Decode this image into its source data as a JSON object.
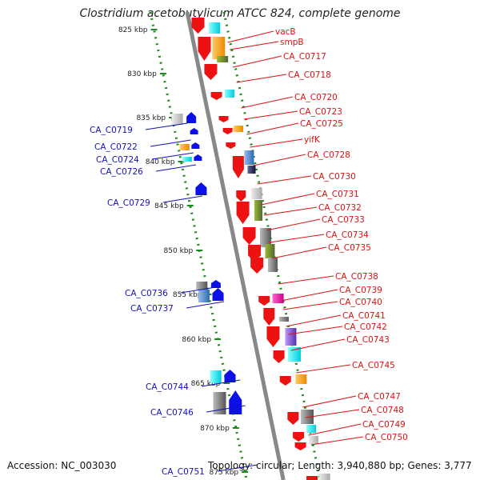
{
  "title": "Clostridium acetobutylicum ATCC 824, complete genome",
  "footer": {
    "accession": "Accession: NC_003030",
    "topology": "Topology: circular; Length: 3,940,880 bp; Genes: 3,777"
  },
  "colors": {
    "forward_label": "#dd1111",
    "reverse_label": "#1111bb",
    "backbone": "#888888",
    "ruler_dots": "#1a8a1a",
    "scale_text": "#222222"
  },
  "scale_ticks": [
    {
      "label": "825 kbp"
    },
    {
      "label": "830 kbp"
    },
    {
      "label": "835 kbp"
    },
    {
      "label": "840 kbp"
    },
    {
      "label": "845 kbp"
    },
    {
      "label": "850 kbp"
    },
    {
      "label": "855 kbp"
    },
    {
      "label": "860 kbp"
    },
    {
      "label": "865 kbp"
    },
    {
      "label": "870 kbp"
    },
    {
      "label": "875 kbp"
    }
  ],
  "forward_genes": [
    {
      "label": "vacB"
    },
    {
      "label": "smpB"
    },
    {
      "label": "CA_C0717"
    },
    {
      "label": "CA_C0718"
    },
    {
      "label": "CA_C0720"
    },
    {
      "label": "CA_C0723"
    },
    {
      "label": "CA_C0725"
    },
    {
      "label": "yifK"
    },
    {
      "label": "CA_C0728"
    },
    {
      "label": "CA_C0730"
    },
    {
      "label": "CA_C0731"
    },
    {
      "label": "CA_C0732"
    },
    {
      "label": "CA_C0733"
    },
    {
      "label": "CA_C0734"
    },
    {
      "label": "CA_C0735"
    },
    {
      "label": "CA_C0738"
    },
    {
      "label": "CA_C0739"
    },
    {
      "label": "CA_C0740"
    },
    {
      "label": "CA_C0741"
    },
    {
      "label": "CA_C0742"
    },
    {
      "label": "CA_C0743"
    },
    {
      "label": "CA_C0745"
    },
    {
      "label": "CA_C0747"
    },
    {
      "label": "CA_C0748"
    },
    {
      "label": "CA_C0749"
    },
    {
      "label": "CA_C0750"
    }
  ],
  "reverse_genes": [
    {
      "label": "CA_C0719"
    },
    {
      "label": "CA_C0722"
    },
    {
      "label": "CA_C0724"
    },
    {
      "label": "CA_C0726"
    },
    {
      "label": "CA_C0729"
    },
    {
      "label": "CA_C0736"
    },
    {
      "label": "CA_C0737"
    },
    {
      "label": "CA_C0744"
    },
    {
      "label": "CA_C0746"
    },
    {
      "label": "CA_C0751"
    }
  ]
}
